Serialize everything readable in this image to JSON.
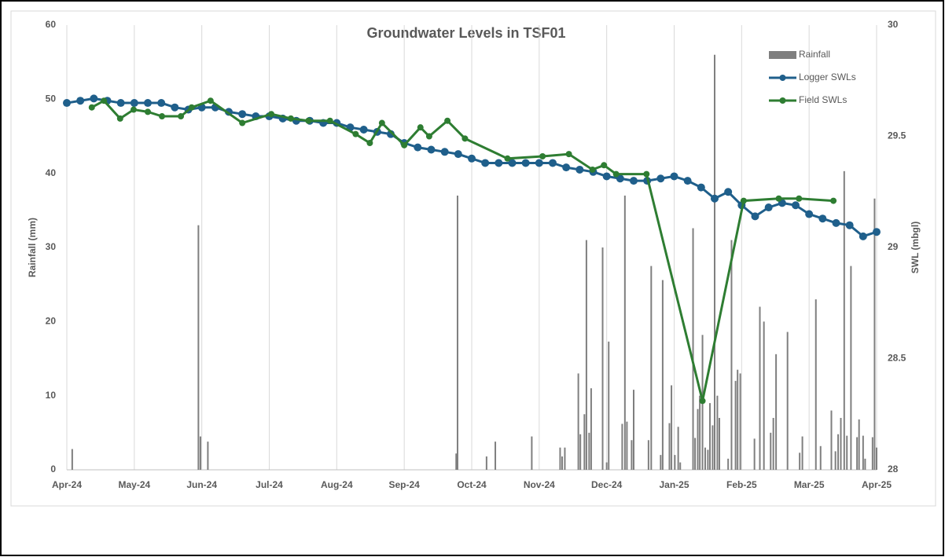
{
  "chart_data": {
    "type": "combo",
    "title": "Groundwater Levels in TSF01",
    "ylabel": "Rainfall (mm)",
    "y2label": "SWL (mbgl)",
    "xlim": [
      0,
      12
    ],
    "xticks": [
      {
        "value": 0,
        "label": "Apr-24"
      },
      {
        "value": 1,
        "label": "May-24"
      },
      {
        "value": 2,
        "label": "Jun-24"
      },
      {
        "value": 3,
        "label": "Jul-24"
      },
      {
        "value": 4,
        "label": "Aug-24"
      },
      {
        "value": 5,
        "label": "Sep-24"
      },
      {
        "value": 6,
        "label": "Oct-24"
      },
      {
        "value": 7,
        "label": "Nov-24"
      },
      {
        "value": 8,
        "label": "Dec-24"
      },
      {
        "value": 9,
        "label": "Jan-25"
      },
      {
        "value": 10,
        "label": "Feb-25"
      },
      {
        "value": 11,
        "label": "Mar-25"
      },
      {
        "value": 12,
        "label": "Apr-25"
      }
    ],
    "ylim": [
      0,
      60
    ],
    "yticks": [
      0,
      10,
      20,
      30,
      40,
      50,
      60
    ],
    "y2lim": [
      28,
      30
    ],
    "y2ticks": [
      28,
      28.5,
      29,
      29.5,
      30
    ],
    "grid": "x",
    "legend": "top-right",
    "series": [
      {
        "name": "Rainfall",
        "type": "bar",
        "color": "#7f7f7f",
        "x": [
          0.08,
          1.95,
          1.98,
          2.09,
          5.77,
          5.79,
          6.22,
          6.35,
          6.89,
          7.31,
          7.34,
          7.38,
          7.58,
          7.61,
          7.67,
          7.7,
          7.74,
          7.77,
          7.94,
          8.0,
          8.03,
          8.23,
          8.27,
          8.3,
          8.37,
          8.4,
          8.62,
          8.66,
          8.8,
          8.83,
          8.93,
          8.96,
          9.01,
          9.06,
          9.09,
          9.28,
          9.31,
          9.35,
          9.38,
          9.42,
          9.46,
          9.5,
          9.53,
          9.57,
          9.6,
          9.64,
          9.67,
          9.8,
          9.85,
          9.91,
          9.94,
          9.98,
          10.19,
          10.27,
          10.33,
          10.43,
          10.47,
          10.51,
          10.68,
          10.86,
          10.9,
          11.1,
          11.17,
          11.33,
          11.39,
          11.43,
          11.47,
          11.52,
          11.56,
          11.62,
          11.71,
          11.74,
          11.8,
          11.83,
          11.94,
          11.97,
          12.0
        ],
        "values": [
          2.8,
          33,
          4.5,
          3.8,
          2.2,
          37,
          1.8,
          3.8,
          4.5,
          3,
          1.8,
          3,
          13,
          4.8,
          7.5,
          31,
          5,
          11,
          30,
          1,
          17.3,
          6.2,
          37,
          6.5,
          4,
          10.8,
          4,
          27.5,
          2,
          25.6,
          6.3,
          11.4,
          2,
          5.8,
          1,
          32.6,
          4.3,
          8.2,
          10,
          18.2,
          3,
          2.7,
          9,
          6,
          56,
          10,
          7,
          1.5,
          31,
          12,
          13.5,
          13,
          4.2,
          22,
          20,
          5,
          7,
          15.6,
          18.6,
          2.3,
          4.5,
          23,
          3.2,
          8,
          2.5,
          4.8,
          7,
          40.3,
          4.6,
          27.5,
          4.4,
          6.8,
          4.6,
          1.5,
          4.4,
          36.6,
          3
        ]
      },
      {
        "name": "Logger SWLs",
        "type": "line",
        "axis": "y2",
        "color": "#1f5f8b",
        "x": [
          0,
          0.2,
          0.4,
          0.6,
          0.8,
          1.0,
          1.2,
          1.4,
          1.6,
          1.8,
          2.0,
          2.2,
          2.4,
          2.6,
          2.8,
          3.0,
          3.2,
          3.4,
          3.6,
          3.8,
          4.0,
          4.2,
          4.4,
          4.6,
          4.8,
          5.0,
          5.2,
          5.4,
          5.6,
          5.8,
          6.0,
          6.2,
          6.4,
          6.6,
          6.8,
          7.0,
          7.2,
          7.4,
          7.6,
          7.8,
          8.0,
          8.2,
          8.4,
          8.6,
          8.8,
          9.0,
          9.2,
          9.4,
          9.6,
          9.8,
          10.0,
          10.2,
          10.4,
          10.6,
          10.8,
          11.0,
          11.2,
          11.4,
          11.6,
          11.8,
          12.0
        ],
        "values": [
          29.65,
          29.66,
          29.67,
          29.66,
          29.65,
          29.65,
          29.65,
          29.65,
          29.63,
          29.62,
          29.63,
          29.63,
          29.61,
          29.6,
          29.59,
          29.59,
          29.58,
          29.57,
          29.57,
          29.56,
          29.56,
          29.54,
          29.53,
          29.52,
          29.51,
          29.47,
          29.45,
          29.44,
          29.43,
          29.42,
          29.4,
          29.38,
          29.38,
          29.38,
          29.38,
          29.38,
          29.38,
          29.36,
          29.35,
          29.34,
          29.32,
          29.31,
          29.3,
          29.3,
          29.31,
          29.32,
          29.3,
          29.27,
          29.22,
          29.25,
          29.19,
          29.14,
          29.18,
          29.2,
          29.19,
          29.15,
          29.13,
          29.11,
          29.1,
          29.05,
          29.07
        ]
      },
      {
        "name": "Field SWLs",
        "type": "line",
        "axis": "y2",
        "color": "#2e7d32",
        "x": [
          0.37,
          0.55,
          0.79,
          0.99,
          1.2,
          1.41,
          1.69,
          1.85,
          2.13,
          2.6,
          3.03,
          3.32,
          3.58,
          3.9,
          4.28,
          4.49,
          4.67,
          5.0,
          5.24,
          5.37,
          5.64,
          5.9,
          6.53,
          7.05,
          7.44,
          7.79,
          7.96,
          8.14,
          8.59,
          9.42,
          10.03,
          10.55,
          10.85,
          11.36
        ],
        "values": [
          29.63,
          29.66,
          29.58,
          29.62,
          29.61,
          29.59,
          29.59,
          29.63,
          29.66,
          29.56,
          29.6,
          29.58,
          29.57,
          29.57,
          29.51,
          29.47,
          29.56,
          29.46,
          29.54,
          29.5,
          29.57,
          29.49,
          29.4,
          29.41,
          29.42,
          29.35,
          29.37,
          29.33,
          29.33,
          28.31,
          29.21,
          29.22,
          29.22,
          29.21
        ]
      }
    ]
  }
}
